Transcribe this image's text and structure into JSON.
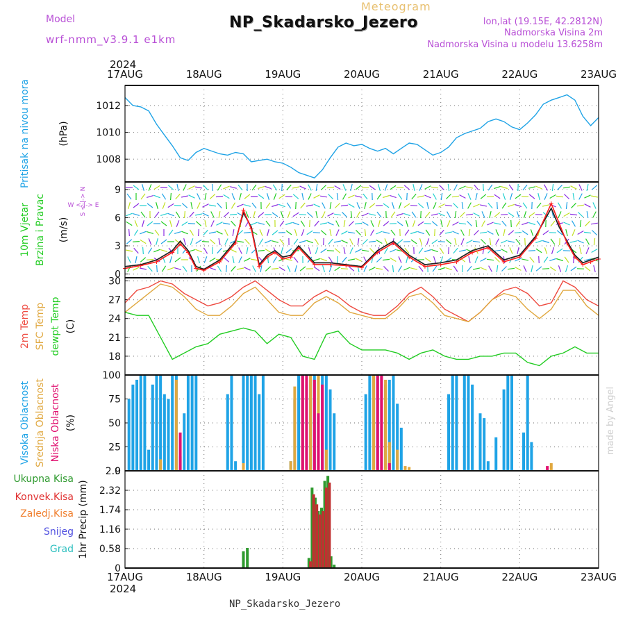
{
  "header": {
    "model_label": "Model",
    "model_name": "wrf-nmm_v3.9.1  e1km",
    "product": "Meteogram",
    "station": "NP_Skadarsko_Jezero",
    "lonlat": "lon,lat (19.15E, 42.2812N)",
    "elevation": "Nadmorska Visina 2m",
    "model_elevation": "Nadmorska Visina u modelu 13.6258m"
  },
  "footer": {
    "station": "NP_Skadarsko_Jezero",
    "credit": "made by Angel"
  },
  "chart_data": {
    "type": "line",
    "year": "2024",
    "x_tick_labels": [
      "17AUG",
      "18AUG",
      "19AUG",
      "20AUG",
      "21AUG",
      "22AUG",
      "23AUG"
    ],
    "colors": {
      "pressure": "#1fa3e6",
      "wind": "#222222",
      "wind_gust": "#ff2020",
      "t2m": "#ee4a40",
      "sfc": "#e0a840",
      "dewpt": "#22cc22",
      "high": "#1fa3e6",
      "mid": "#e0a840",
      "low": "#e01070",
      "total": "#2e9a2e",
      "conv": "#c03030"
    },
    "panels": [
      {
        "id": "pressure",
        "ylabels": [
          "Pritisak na nivou mora",
          "(hPa)"
        ],
        "label_colors": [
          "#1fa3e6",
          "#111111"
        ],
        "ylim": [
          1006.3,
          1013.5
        ],
        "yticks": [
          1008,
          1010,
          1012
        ],
        "series": [
          {
            "color": "#1fa3e6",
            "x": [
              0,
              0.1,
              0.2,
              0.3,
              0.4,
              0.5,
              0.6,
              0.7,
              0.8,
              0.9,
              1.0,
              1.1,
              1.2,
              1.3,
              1.4,
              1.5,
              1.6,
              1.7,
              1.8,
              1.9,
              2.0,
              2.1,
              2.2,
              2.3,
              2.4,
              2.5,
              2.6,
              2.7,
              2.8,
              2.9,
              3.0,
              3.1,
              3.2,
              3.3,
              3.4,
              3.5,
              3.6,
              3.7,
              3.8,
              3.9,
              4.0,
              4.1,
              4.2,
              4.3,
              4.4,
              4.5,
              4.6,
              4.7,
              4.8,
              4.9,
              5.0,
              5.1,
              5.2,
              5.3,
              5.4,
              5.5,
              5.6,
              5.7,
              5.8,
              5.9,
              6.0
            ],
            "y": [
              1012.6,
              1012.0,
              1011.9,
              1011.6,
              1010.6,
              1009.8,
              1009.0,
              1008.1,
              1007.9,
              1008.5,
              1008.8,
              1008.6,
              1008.4,
              1008.3,
              1008.5,
              1008.4,
              1007.8,
              1007.9,
              1008.0,
              1007.8,
              1007.7,
              1007.4,
              1007.0,
              1006.8,
              1006.6,
              1007.2,
              1008.1,
              1008.9,
              1009.2,
              1009.0,
              1009.1,
              1008.8,
              1008.6,
              1008.8,
              1008.4,
              1008.8,
              1009.2,
              1009.1,
              1008.7,
              1008.3,
              1008.5,
              1008.9,
              1009.6,
              1009.9,
              1010.1,
              1010.3,
              1010.8,
              1011.0,
              1010.8,
              1010.4,
              1010.2,
              1010.7,
              1011.3,
              1012.1,
              1012.4,
              1012.6,
              1012.8,
              1012.4,
              1011.2,
              1010.5,
              1011.1
            ]
          }
        ]
      },
      {
        "id": "wind",
        "ylabels": [
          "10m Vjetar",
          "Brzina i Pravac",
          "(m/s)"
        ],
        "label_colors": [
          "#22cc22",
          "#22cc22",
          "#111111"
        ],
        "ylim": [
          -0.4,
          9.8
        ],
        "yticks": [
          0,
          3,
          6,
          9
        ],
        "compass": "W <-|-> E",
        "compass_v": "S <-|-> N",
        "series": [
          {
            "name_key": "wind",
            "color": "#222222",
            "x": [
              0,
              0.2,
              0.4,
              0.6,
              0.7,
              0.8,
              0.9,
              1.0,
              1.2,
              1.4,
              1.5,
              1.6,
              1.7,
              1.8,
              1.9,
              2.0,
              2.1,
              2.2,
              2.4,
              2.6,
              2.8,
              3.0,
              3.2,
              3.4,
              3.6,
              3.8,
              4.0,
              4.2,
              4.4,
              4.6,
              4.8,
              5.0,
              5.2,
              5.4,
              5.5,
              5.6,
              5.7,
              5.8,
              5.9,
              6.0
            ],
            "y": [
              0.8,
              1.0,
              1.5,
              2.5,
              3.5,
              2.5,
              0.8,
              0.5,
              1.5,
              3.5,
              6.5,
              5.0,
              1.0,
              2.0,
              2.5,
              1.8,
              2.0,
              3.0,
              1.2,
              1.2,
              1.0,
              0.8,
              2.5,
              3.5,
              2.0,
              1.0,
              1.2,
              1.5,
              2.5,
              3.0,
              1.5,
              2.0,
              4.0,
              7.0,
              5.0,
              3.5,
              2.0,
              1.2,
              1.5,
              1.8
            ]
          },
          {
            "name_key": "wind_gust",
            "color": "#ff2020",
            "x": [
              0,
              0.2,
              0.4,
              0.6,
              0.7,
              0.8,
              0.9,
              1.0,
              1.2,
              1.4,
              1.5,
              1.6,
              1.7,
              1.8,
              1.9,
              2.0,
              2.1,
              2.2,
              2.4,
              2.6,
              2.8,
              3.0,
              3.2,
              3.4,
              3.6,
              3.8,
              4.0,
              4.2,
              4.4,
              4.6,
              4.8,
              5.0,
              5.2,
              5.4,
              5.5,
              5.6,
              5.7,
              5.8,
              5.9,
              6.0
            ],
            "y": [
              0.6,
              0.9,
              1.3,
              2.3,
              3.2,
              2.3,
              0.6,
              0.4,
              1.3,
              3.3,
              6.8,
              4.8,
              0.8,
              1.8,
              2.3,
              1.6,
              1.8,
              2.8,
              1.0,
              1.0,
              0.9,
              0.7,
              2.3,
              3.3,
              1.8,
              0.8,
              1.0,
              1.3,
              2.3,
              2.8,
              1.3,
              1.8,
              3.8,
              7.5,
              5.4,
              3.3,
              1.8,
              1.0,
              1.3,
              1.6
            ]
          }
        ]
      },
      {
        "id": "temp",
        "ylabels": [
          "2m Temp",
          "SFC Temp",
          "dewpt Temp",
          "(C)"
        ],
        "label_colors": [
          "#ee4a40",
          "#e0a840",
          "#22cc22",
          "#111111"
        ],
        "ylim": [
          15.0,
          30.5
        ],
        "yticks": [
          18,
          21,
          24,
          27,
          30
        ],
        "series": [
          {
            "name_key": "t2m",
            "color": "#ee4a40",
            "x": [
              0,
              0.15,
              0.3,
              0.45,
              0.6,
              0.75,
              0.9,
              1.05,
              1.2,
              1.35,
              1.5,
              1.65,
              1.8,
              1.95,
              2.1,
              2.25,
              2.4,
              2.55,
              2.7,
              2.85,
              3.0,
              3.15,
              3.3,
              3.45,
              3.6,
              3.75,
              3.9,
              4.05,
              4.2,
              4.35,
              4.5,
              4.65,
              4.8,
              4.95,
              5.1,
              5.25,
              5.4,
              5.55,
              5.7,
              5.85,
              6.0
            ],
            "y": [
              26.5,
              28.5,
              29.0,
              30.0,
              29.5,
              28.0,
              27.0,
              26.0,
              26.5,
              27.5,
              29.0,
              30.0,
              28.5,
              27.0,
              26.0,
              26.0,
              27.5,
              28.5,
              27.5,
              26.0,
              25.0,
              24.5,
              24.5,
              26.0,
              28.0,
              29.0,
              27.5,
              25.5,
              24.5,
              23.5,
              25.0,
              27.0,
              28.5,
              29.0,
              28.0,
              26.0,
              26.5,
              30.0,
              29.0,
              27.0,
              26.0
            ]
          },
          {
            "name_key": "sfc",
            "color": "#e0a840",
            "x": [
              0,
              0.15,
              0.3,
              0.45,
              0.6,
              0.75,
              0.9,
              1.05,
              1.2,
              1.35,
              1.5,
              1.65,
              1.8,
              1.95,
              2.1,
              2.25,
              2.4,
              2.55,
              2.7,
              2.85,
              3.0,
              3.15,
              3.3,
              3.45,
              3.6,
              3.75,
              3.9,
              4.05,
              4.2,
              4.35,
              4.5,
              4.65,
              4.8,
              4.95,
              5.1,
              5.25,
              5.4,
              5.55,
              5.7,
              5.85,
              6.0
            ],
            "y": [
              25.0,
              26.5,
              28.0,
              29.5,
              29.0,
              27.5,
              25.5,
              24.5,
              24.5,
              26.0,
              28.0,
              29.0,
              27.0,
              25.0,
              24.5,
              24.5,
              26.5,
              27.5,
              26.5,
              25.0,
              24.5,
              24.0,
              24.0,
              25.5,
              27.5,
              28.0,
              26.5,
              24.5,
              24.0,
              23.5,
              25.0,
              27.0,
              28.0,
              27.5,
              25.5,
              24.0,
              25.5,
              28.5,
              28.5,
              26.0,
              24.5
            ]
          },
          {
            "name_key": "dewpt",
            "color": "#22cc22",
            "x": [
              0,
              0.15,
              0.3,
              0.45,
              0.6,
              0.75,
              0.9,
              1.05,
              1.2,
              1.35,
              1.5,
              1.65,
              1.8,
              1.95,
              2.1,
              2.25,
              2.4,
              2.55,
              2.7,
              2.85,
              3.0,
              3.15,
              3.3,
              3.45,
              3.6,
              3.75,
              3.9,
              4.05,
              4.2,
              4.35,
              4.5,
              4.65,
              4.8,
              4.95,
              5.1,
              5.25,
              5.4,
              5.55,
              5.7,
              5.85,
              6.0
            ],
            "y": [
              25.0,
              24.5,
              24.5,
              21.0,
              17.5,
              18.5,
              19.5,
              20.0,
              21.5,
              22.0,
              22.5,
              22.0,
              20.0,
              21.5,
              21.0,
              18.0,
              17.5,
              21.5,
              22.0,
              20.0,
              19.0,
              19.0,
              19.0,
              18.5,
              17.5,
              18.5,
              19.0,
              18.0,
              17.5,
              17.5,
              18.0,
              18.0,
              18.5,
              18.5,
              17.0,
              16.5,
              18.0,
              18.5,
              19.5,
              18.5,
              18.5
            ]
          }
        ]
      },
      {
        "id": "cloud",
        "ylabels": [
          "Visoka Oblacnost",
          "Srednja Oblacnost",
          "Niska Oblacnost",
          "(%)"
        ],
        "label_colors": [
          "#1fa3e6",
          "#e0a840",
          "#e01070",
          "#111111"
        ],
        "ylim": [
          0,
          100
        ],
        "yticks": [
          0,
          25,
          50,
          75,
          100
        ],
        "bars": [
          {
            "name_key": "high",
            "color": "#1fa3e6",
            "x": [
              0.05,
              0.1,
              0.15,
              0.2,
              0.25,
              0.3,
              0.35,
              0.4,
              0.45,
              0.5,
              0.55,
              0.6,
              0.65,
              0.7,
              0.75,
              0.8,
              0.85,
              0.9,
              1.3,
              1.35,
              1.4,
              1.5,
              1.55,
              1.6,
              1.65,
              1.7,
              1.75,
              2.1,
              2.15,
              2.2,
              2.25,
              2.3,
              2.35,
              2.4,
              2.45,
              2.5,
              2.55,
              2.6,
              2.65,
              3.05,
              3.1,
              3.15,
              3.2,
              3.25,
              3.3,
              3.35,
              3.4,
              3.45,
              3.5,
              4.1,
              4.15,
              4.2,
              4.3,
              4.35,
              4.4,
              4.5,
              4.55,
              4.6,
              4.7,
              4.8,
              4.85,
              4.9,
              5.05,
              5.1,
              5.15
            ],
            "y": [
              75,
              90,
              95,
              100,
              100,
              22,
              90,
              100,
              100,
              80,
              75,
              100,
              100,
              15,
              60,
              100,
              100,
              100,
              80,
              100,
              10,
              100,
              100,
              100,
              100,
              80,
              100,
              10,
              75,
              100,
              100,
              90,
              95,
              100,
              100,
              100,
              100,
              85,
              60,
              80,
              100,
              100,
              100,
              100,
              90,
              95,
              100,
              70,
              45,
              80,
              100,
              100,
              100,
              100,
              90,
              60,
              55,
              10,
              35,
              85,
              100,
              100,
              40,
              100,
              30
            ]
          },
          {
            "name_key": "mid",
            "color": "#e0a840",
            "x": [
              0.45,
              0.65,
              1.5,
              2.1,
              2.15,
              2.25,
              2.35,
              2.45,
              2.55,
              3.15,
              3.25,
              3.3,
              3.35,
              3.45,
              3.55,
              3.6,
              5.4
            ],
            "y": [
              12,
              95,
              8,
              10,
              88,
              98,
              100,
              100,
              22,
              100,
              98,
              95,
              30,
              22,
              5,
              4,
              8
            ]
          },
          {
            "name_key": "low",
            "color": "#e01070",
            "x": [
              0.7,
              2.25,
              2.3,
              2.4,
              2.45,
              2.5,
              3.2,
              3.25,
              3.35,
              5.35
            ],
            "y": [
              40,
              100,
              100,
              95,
              60,
              90,
              100,
              100,
              8,
              5
            ]
          }
        ]
      },
      {
        "id": "precip",
        "ylabels": [
          "Ukupna Kisa",
          "Konvek.Kisa",
          "Zaledj.Kisa",
          "Snijeg",
          "Grad",
          "1hr Precip (mm)"
        ],
        "label_colors": [
          "#2e9a2e",
          "#e03030",
          "#f08030",
          "#5050e0",
          "#30c0c0",
          "#111111"
        ],
        "ylim": [
          0,
          2.9
        ],
        "yticks": [
          0,
          0.58,
          1.16,
          1.74,
          2.32,
          2.9
        ],
        "bars": [
          {
            "name_key": "total",
            "color": "#2e9a2e",
            "x": [
              1.5,
              1.55,
              2.33,
              2.37,
              2.41,
              2.45,
              2.49,
              2.53,
              2.57,
              2.61,
              2.65
            ],
            "y": [
              0.5,
              0.6,
              0.3,
              2.4,
              2.1,
              1.7,
              1.8,
              2.6,
              2.75,
              0.35,
              0.1
            ]
          },
          {
            "name_key": "conv",
            "color": "#c03030",
            "x": [
              2.35,
              2.39,
              2.43,
              2.47,
              2.51,
              2.55,
              2.59
            ],
            "y": [
              0.2,
              2.2,
              1.9,
              1.6,
              1.7,
              2.4,
              2.55
            ]
          }
        ]
      }
    ]
  }
}
